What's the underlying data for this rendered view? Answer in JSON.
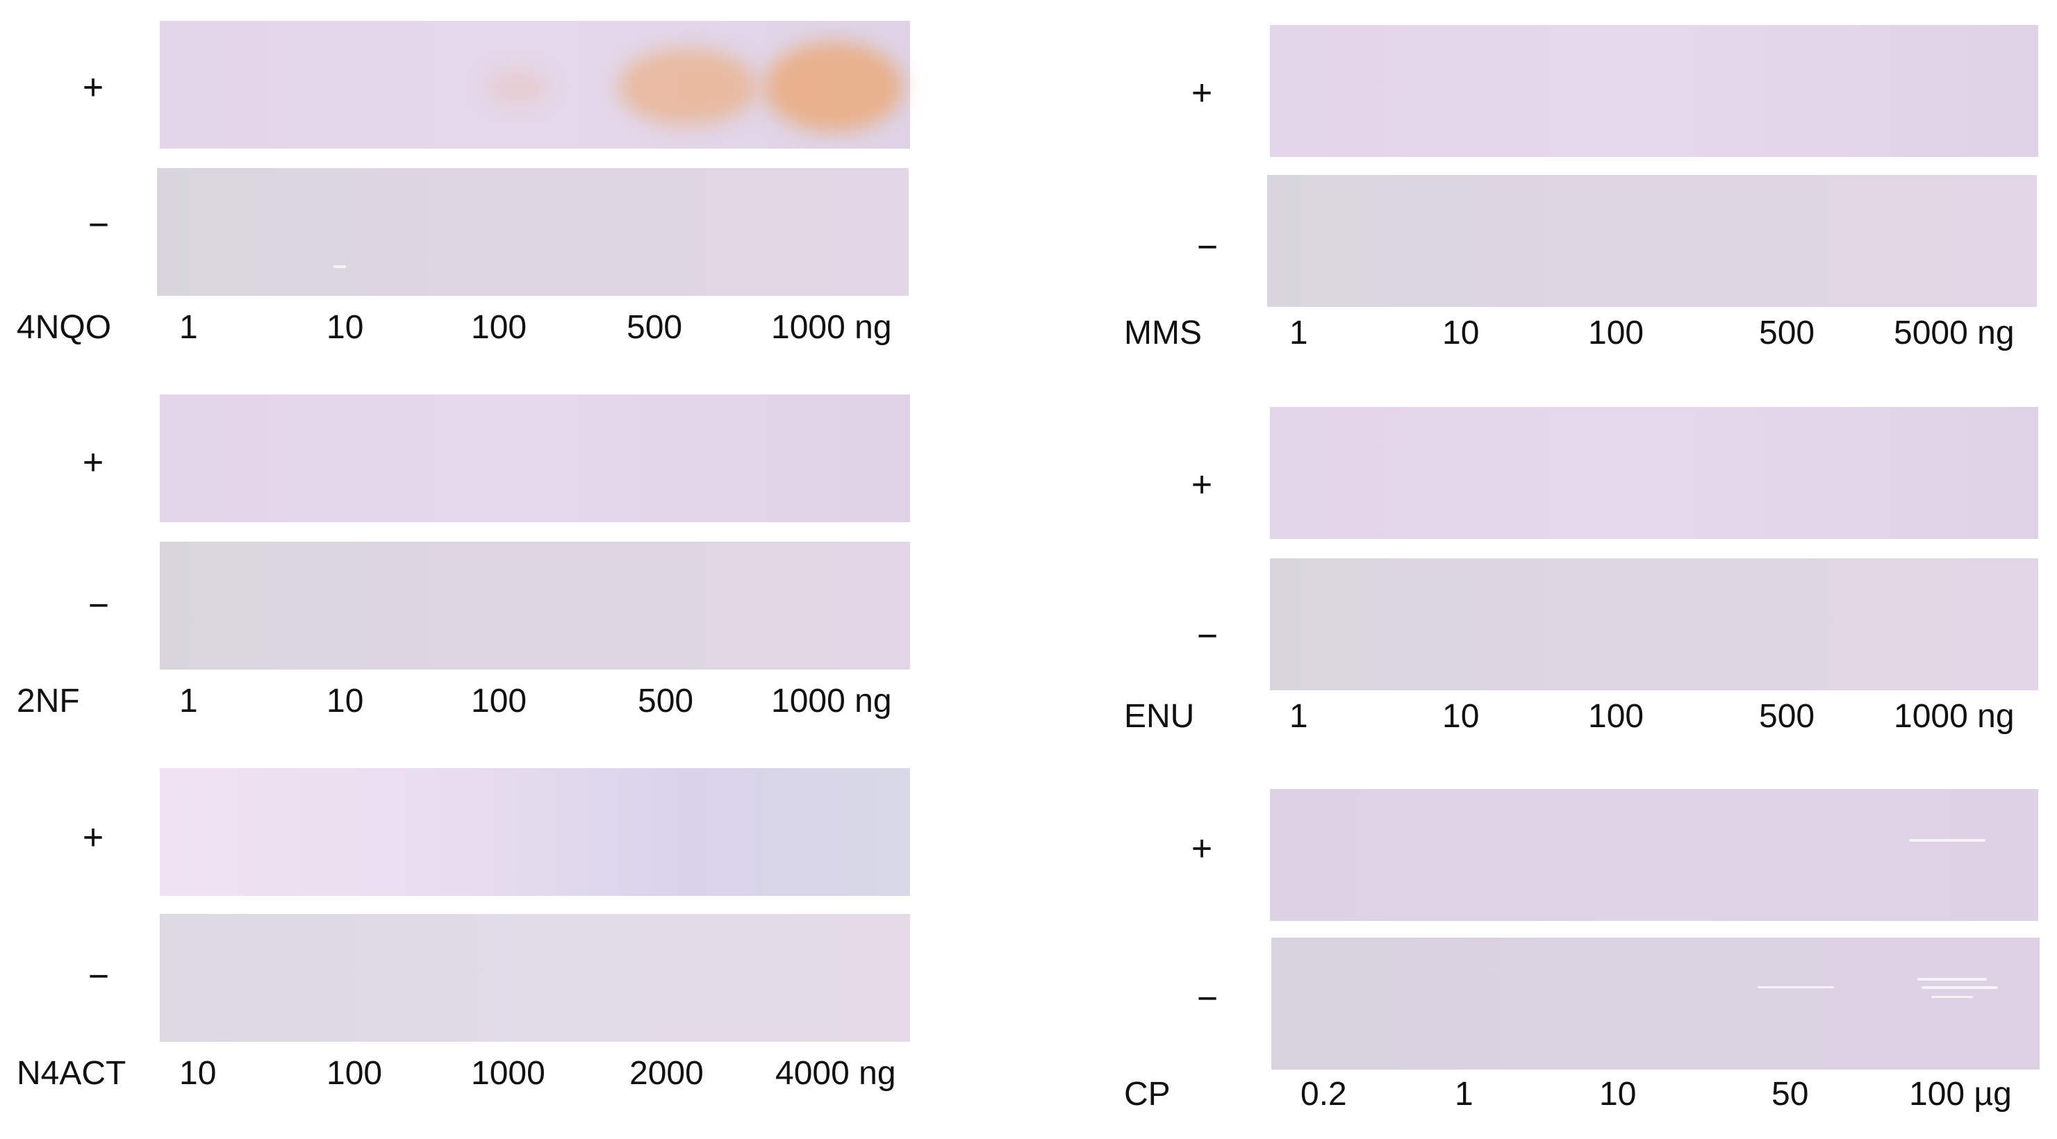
{
  "colors": {
    "strip_plus": "#e4d7e9",
    "strip_minus": "#dcd6e1",
    "positive_spot": "#eab18a"
  },
  "signs": {
    "plus": "+",
    "minus": "−"
  },
  "panels": [
    {
      "compound": "4NQO",
      "doses": [
        "1",
        "10",
        "100",
        "500",
        "1000 ng"
      ],
      "plus_response": [
        0,
        0,
        0.15,
        0.8,
        1.0
      ]
    },
    {
      "compound": "2NF",
      "doses": [
        "1",
        "10",
        "100",
        "500",
        "1000 ng"
      ],
      "plus_response": [
        0,
        0,
        0,
        0,
        0
      ]
    },
    {
      "compound": "N4ACT",
      "doses": [
        "10",
        "100",
        "1000",
        "2000",
        "4000 ng"
      ],
      "plus_response": [
        0,
        0,
        0,
        0,
        0
      ]
    },
    {
      "compound": "MMS",
      "doses": [
        "1",
        "10",
        "100",
        "500",
        "5000 ng"
      ],
      "plus_response": [
        0,
        0,
        0,
        0,
        0
      ]
    },
    {
      "compound": "ENU",
      "doses": [
        "1",
        "10",
        "100",
        "500",
        "1000 ng"
      ],
      "plus_response": [
        0,
        0,
        0,
        0,
        0
      ]
    },
    {
      "compound": "CP",
      "doses": [
        "0.2",
        "1",
        "10",
        "50",
        "100 µg"
      ],
      "plus_response": [
        0,
        0,
        0,
        0,
        0
      ]
    }
  ]
}
